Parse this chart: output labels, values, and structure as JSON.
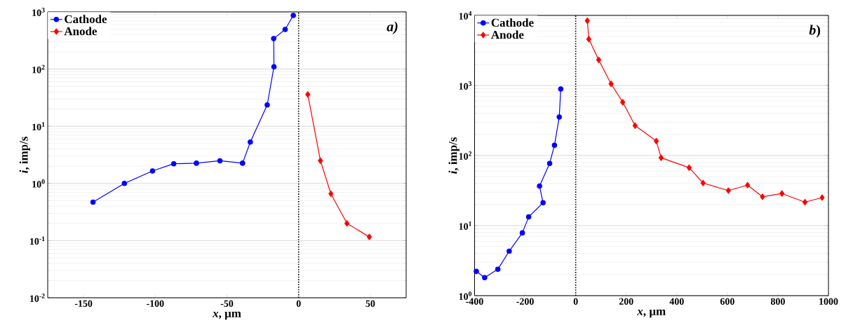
{
  "chart_data": [
    {
      "type": "line",
      "xlabel": "*x*, µm",
      "ylabel": "*i*, imp/s",
      "annotations": [
        "*a)*"
      ],
      "xlim": [
        -175,
        75
      ],
      "xticks": [
        -150,
        -100,
        -50,
        0,
        50
      ],
      "ylim": [
        0.01,
        1000
      ],
      "yticks": [
        {
          "value": 0.01,
          "label": "10$^{-2}$"
        },
        {
          "value": 0.1,
          "label": "10$^{-1}$"
        },
        {
          "value": 1,
          "label": "10$^{0}$"
        },
        {
          "value": 10,
          "label": "10$^{1}$"
        },
        {
          "value": 100,
          "label": "10$^{2}$"
        },
        {
          "value": 1000,
          "label": "10$^{3}$"
        }
      ],
      "log": "y",
      "grid": "y",
      "legend": "top left",
      "ref_lines": [
        {
          "axis": "x",
          "value": 0,
          "color": "#000000",
          "line_style": "dotted"
        }
      ],
      "series": [
        {
          "name": "Cathode",
          "color": "#0000ff",
          "marker": "circle",
          "x": [
            -143.4,
            -121.5,
            -101.9,
            -87.1,
            -71.3,
            -54.9,
            -39.1,
            -33.7,
            -21.9,
            -17.2,
            -17.4,
            -9.4,
            -3.7
          ],
          "values": [
            0.47,
            1.0,
            1.65,
            2.21,
            2.26,
            2.49,
            2.26,
            5.3,
            23.6,
            110,
            341,
            493,
            868
          ]
        },
        {
          "name": "Anode",
          "color": "#ff0000",
          "marker": "diamond",
          "x": [
            6.4,
            15.2,
            22.5,
            33.7,
            49.3
          ],
          "values": [
            36,
            2.49,
            0.66,
            0.2,
            0.116
          ]
        }
      ]
    },
    {
      "type": "line",
      "xlabel": "*x*, µm",
      "ylabel": "*i*, imp/s",
      "annotations": [
        "*b*)"
      ],
      "xlim": [
        -400,
        1000
      ],
      "xticks": [
        -400,
        -200,
        0,
        200,
        400,
        600,
        800,
        1000
      ],
      "ylim": [
        1,
        10000
      ],
      "yticks": [
        {
          "value": 1,
          "label": "10$^{0}$"
        },
        {
          "value": 10,
          "label": "10$^{1}$"
        },
        {
          "value": 100,
          "label": "10$^{2}$"
        },
        {
          "value": 1000,
          "label": "10$^{3}$"
        },
        {
          "value": 10000,
          "label": "10$^{4}$"
        }
      ],
      "log": "y",
      "grid": "y",
      "legend": "top left",
      "ref_lines": [
        {
          "axis": "x",
          "value": 0,
          "color": "#000000",
          "line_style": "dotted"
        }
      ],
      "series": [
        {
          "name": "Cathode",
          "color": "#0000ff",
          "marker": "circle",
          "x": [
            -393,
            -360,
            -308,
            -263,
            -211,
            -186,
            -129,
            -143,
            -103,
            -84,
            -65,
            -59
          ],
          "values": [
            2.22,
            1.81,
            2.38,
            4.31,
            7.87,
            13.3,
            21.2,
            36.7,
            77.3,
            140,
            355,
            891
          ]
        },
        {
          "name": "Anode",
          "color": "#ff0000",
          "marker": "diamond",
          "x": [
            46,
            52,
            91,
            140,
            186,
            235,
            319,
            338,
            449,
            504,
            604,
            680,
            739,
            816,
            907,
            975
          ],
          "values": [
            8380,
            4590,
            2320,
            1055,
            578,
            267,
            161,
            93,
            67,
            40.5,
            31.6,
            37.8,
            25.8,
            28.7,
            21.6,
            25.1
          ]
        }
      ]
    }
  ]
}
